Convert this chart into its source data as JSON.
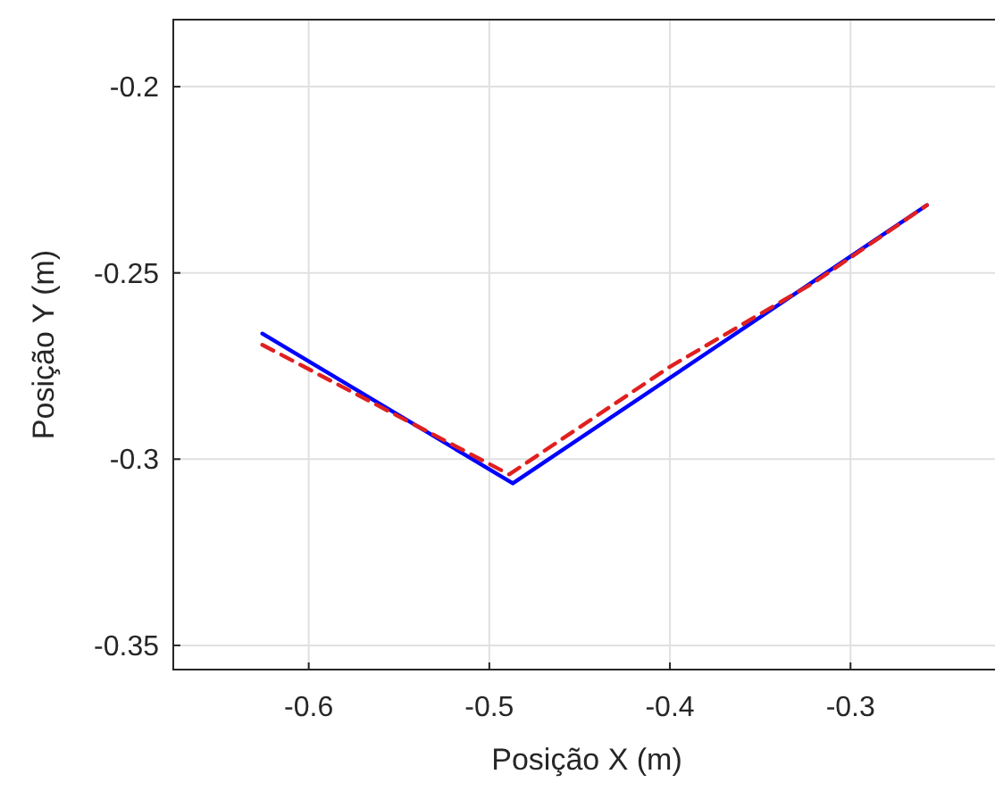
{
  "chart_data": {
    "type": "line",
    "xlabel": "Posição X (m)",
    "ylabel": "Posição Y (m)",
    "xlim": [
      -0.675,
      -0.22
    ],
    "ylim": [
      -0.3565,
      -0.182
    ],
    "xticks": [
      -0.6,
      -0.5,
      -0.4,
      -0.3
    ],
    "yticks": [
      -0.35,
      -0.3,
      -0.25,
      -0.2
    ],
    "grid": true,
    "series": [
      {
        "color": "#0000ff",
        "line_style": "solid",
        "x": [
          -0.6257,
          -0.487,
          -0.2577
        ],
        "values": [
          -0.2663,
          -0.3065,
          -0.2318
        ]
      },
      {
        "color": "#e02020",
        "line_style": "dashed",
        "x": [
          -0.6257,
          -0.489,
          -0.4,
          -0.32,
          -0.2577
        ],
        "values": [
          -0.2693,
          -0.3041,
          -0.2752,
          -0.2525,
          -0.2318
        ]
      }
    ]
  }
}
